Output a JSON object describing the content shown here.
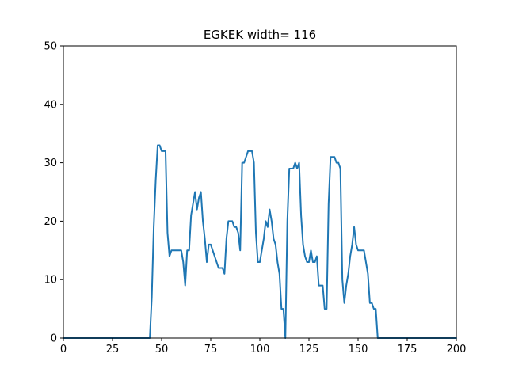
{
  "chart_data": {
    "type": "line",
    "title": "EGKEK width= 116",
    "xlabel": "",
    "ylabel": "",
    "xlim": [
      0,
      200
    ],
    "ylim": [
      0,
      50
    ],
    "grid": false,
    "x_ticks": [
      "0",
      "25",
      "50",
      "75",
      "100",
      "125",
      "150",
      "175",
      "200"
    ],
    "y_ticks": [
      "0",
      "10",
      "20",
      "30",
      "40",
      "50"
    ],
    "series": [
      {
        "color": "#1f77b4",
        "x": [
          0,
          10,
          20,
          30,
          40,
          44,
          45,
          46,
          47,
          48,
          49,
          50,
          51,
          52,
          53,
          54,
          55,
          56,
          57,
          58,
          59,
          60,
          61,
          62,
          63,
          64,
          65,
          66,
          67,
          68,
          69,
          70,
          71,
          72,
          73,
          74,
          75,
          76,
          77,
          78,
          79,
          80,
          81,
          82,
          83,
          84,
          85,
          86,
          87,
          88,
          89,
          90,
          91,
          92,
          93,
          94,
          95,
          96,
          97,
          98,
          99,
          100,
          101,
          102,
          103,
          104,
          105,
          106,
          107,
          108,
          109,
          110,
          111,
          112,
          113,
          114,
          115,
          116,
          117,
          118,
          119,
          120,
          121,
          122,
          123,
          124,
          125,
          126,
          127,
          128,
          129,
          130,
          131,
          132,
          133,
          134,
          135,
          136,
          137,
          138,
          139,
          140,
          141,
          142,
          143,
          144,
          145,
          146,
          147,
          148,
          149,
          150,
          151,
          152,
          153,
          154,
          155,
          156,
          157,
          158,
          159,
          160,
          161,
          165,
          170,
          180,
          190,
          200
        ],
        "y": [
          0,
          0,
          0,
          0,
          0,
          0,
          7,
          19,
          27,
          33,
          33,
          32,
          32,
          32,
          18,
          14,
          15,
          15,
          15,
          15,
          15,
          15,
          13,
          9,
          15,
          15,
          21,
          23,
          25,
          22,
          24,
          25,
          20,
          17,
          13,
          16,
          16,
          15,
          14,
          13,
          12,
          12,
          12,
          11,
          17,
          20,
          20,
          20,
          19,
          19,
          18,
          15,
          30,
          30,
          31,
          32,
          32,
          32,
          30,
          18,
          13,
          13,
          15,
          17,
          20,
          19,
          22,
          20,
          17,
          16,
          13,
          11,
          5,
          5,
          0,
          20,
          29,
          29,
          29,
          30,
          29,
          30,
          21,
          16,
          14,
          13,
          13,
          15,
          13,
          13,
          14,
          9,
          9,
          9,
          5,
          5,
          23,
          31,
          31,
          31,
          30,
          30,
          29,
          10,
          6,
          9,
          11,
          14,
          16,
          19,
          16,
          15,
          15,
          15,
          15,
          13,
          11,
          6,
          6,
          5,
          5,
          0,
          0,
          0,
          0,
          0,
          0,
          0
        ]
      }
    ]
  }
}
